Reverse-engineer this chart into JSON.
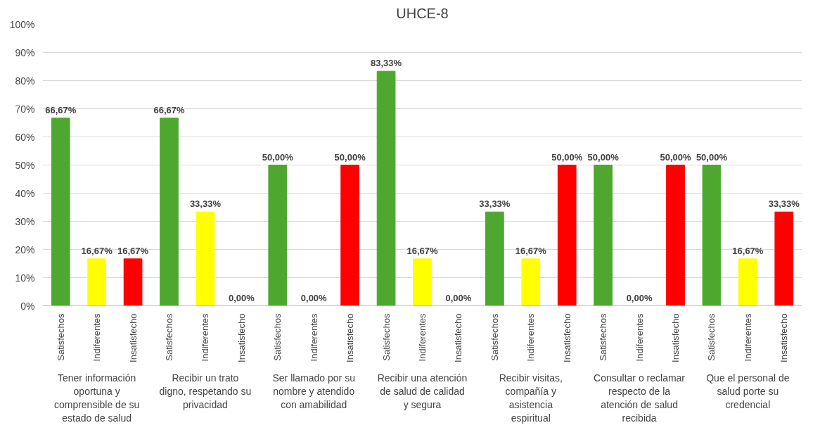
{
  "chart_data": {
    "type": "bar",
    "title": "UHCE-8",
    "categories": [
      "Tener información oportuna y comprensible de su estado de salud",
      "Recibir un trato digno, respetando su privacidad",
      "Ser llamado por su nombre y atendido con amabilidad",
      "Recibir una atención de salud de calidad y segura",
      "Recibir visitas, compañía y asistencia espiritual",
      "Consultar o reclamar respecto de la atención de salud recibida",
      "Que el personal de salud porte su credencial"
    ],
    "series": [
      {
        "name": "Satisfechos",
        "color": "#4ea72e",
        "values": [
          66.67,
          66.67,
          50,
          83.33,
          33.33,
          50,
          50
        ],
        "value_labels": [
          "66,67%",
          "66,67%",
          "50,00%",
          "83,33%",
          "33,33%",
          "50,00%",
          "50,00%"
        ]
      },
      {
        "name": "Indiferentes",
        "color": "#ffff00",
        "values": [
          16.67,
          33.33,
          0,
          16.67,
          16.67,
          0,
          16.67
        ],
        "value_labels": [
          "16,67%",
          "33,33%",
          "0,00%",
          "16,67%",
          "16,67%",
          "0,00%",
          "16,67%"
        ]
      },
      {
        "name": "Insatisfecho",
        "color": "#ff0000",
        "values": [
          16.67,
          0,
          50,
          0,
          50,
          50,
          33.33
        ],
        "value_labels": [
          "16,67%",
          "0,00%",
          "50,00%",
          "0,00%",
          "50,00%",
          "50,00%",
          "33,33%"
        ]
      }
    ],
    "ylim": [
      0,
      100
    ],
    "yticks": [
      {
        "value": 0,
        "label": "0%"
      },
      {
        "value": 10,
        "label": "10%"
      },
      {
        "value": 20,
        "label": "20%"
      },
      {
        "value": 30,
        "label": "30%"
      },
      {
        "value": 40,
        "label": "40%"
      },
      {
        "value": 50,
        "label": "50%"
      },
      {
        "value": 60,
        "label": "60%"
      },
      {
        "value": 70,
        "label": "70%"
      },
      {
        "value": 80,
        "label": "80%"
      },
      {
        "value": 90,
        "label": "90%"
      },
      {
        "value": 100,
        "label": "100%"
      }
    ],
    "grid": "y"
  }
}
